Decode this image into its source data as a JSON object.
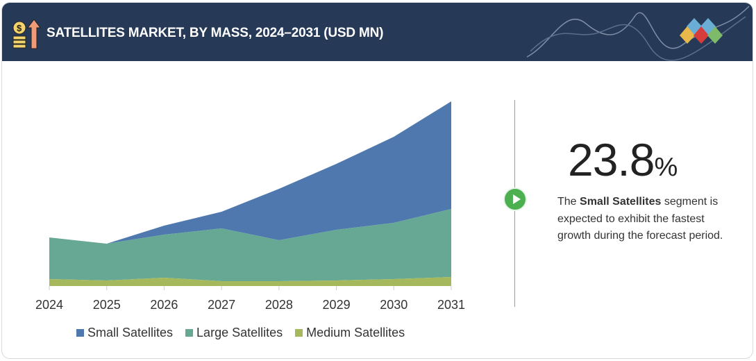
{
  "header": {
    "title": "SATELLITES MARKET, BY MASS, 2024–2031 (USD MN)"
  },
  "highlight": {
    "value": "23.8",
    "unit": "%",
    "text_pre": "The ",
    "segment": "Small Satellites",
    "text_post": " segment is expected to exhibit the fastest growth during the forecast period."
  },
  "chart_data": {
    "type": "area",
    "stacked": true,
    "categories": [
      "2024",
      "2025",
      "2026",
      "2027",
      "2028",
      "2029",
      "2030",
      "2031"
    ],
    "series": [
      {
        "name": "Medium Satellites",
        "color": "#a5b95c",
        "values": [
          10,
          8,
          12,
          7,
          7,
          8,
          10,
          13
        ]
      },
      {
        "name": "Large Satellites",
        "color": "#66a894",
        "values": [
          60,
          53,
          62,
          76,
          59,
          73,
          81,
          98
        ]
      },
      {
        "name": "Small Satellites",
        "color": "#4f79ae",
        "values": [
          0,
          0,
          13,
          24,
          74,
          95,
          124,
          155
        ]
      }
    ],
    "legend_order": [
      "Small Satellites",
      "Large Satellites",
      "Medium Satellites"
    ],
    "legend_position": "bottom",
    "y_axis_shown": false,
    "grid": false,
    "title": "",
    "xlabel": "",
    "ylabel": ""
  }
}
